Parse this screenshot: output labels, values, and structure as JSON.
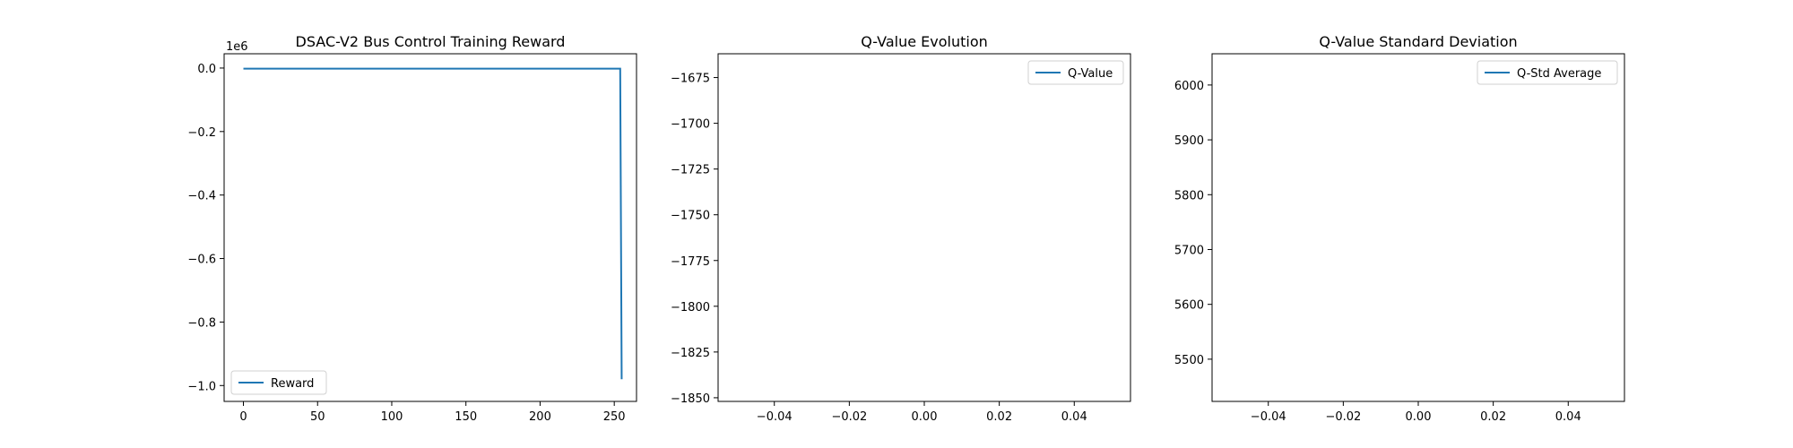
{
  "chart_data": [
    {
      "type": "line",
      "title": "DSAC-V2 Bus Control Training Reward",
      "xlabel": "",
      "ylabel": "",
      "y_offset_label": "1e6",
      "xlim": [
        -13,
        265
      ],
      "ylim": [
        -1.05,
        0.045
      ],
      "x_ticks": [
        0,
        50,
        100,
        150,
        200,
        250
      ],
      "x_tick_labels": [
        "0",
        "50",
        "100",
        "150",
        "200",
        "250"
      ],
      "y_ticks": [
        0.0,
        -0.2,
        -0.4,
        -0.6,
        -0.8,
        -1.0
      ],
      "y_tick_labels": [
        "0.0",
        "−0.2",
        "−0.4",
        "−0.6",
        "−0.8",
        "−1.0"
      ],
      "legend_position": "lower-left",
      "series": [
        {
          "name": "Reward",
          "color": "#1f77b4",
          "x": [
            0,
            50,
            100,
            150,
            200,
            254,
            255
          ],
          "y": [
            -0.002,
            -0.002,
            -0.002,
            -0.002,
            -0.002,
            -0.002,
            -0.98
          ]
        }
      ],
      "grid": false
    },
    {
      "type": "line",
      "title": "Q-Value Evolution",
      "xlabel": "",
      "ylabel": "",
      "xlim": [
        -0.055,
        0.055
      ],
      "ylim": [
        -1852,
        -1662
      ],
      "x_ticks": [
        -0.04,
        -0.02,
        0.0,
        0.02,
        0.04
      ],
      "x_tick_labels": [
        "−0.04",
        "−0.02",
        "0.00",
        "0.02",
        "0.04"
      ],
      "y_ticks": [
        -1675,
        -1700,
        -1725,
        -1750,
        -1775,
        -1800,
        -1825,
        -1850
      ],
      "y_tick_labels": [
        "−1675",
        "−1700",
        "−1725",
        "−1750",
        "−1775",
        "−1800",
        "−1825",
        "−1850"
      ],
      "legend_position": "upper-right",
      "series": [
        {
          "name": "Q-Value",
          "color": "#1f77b4",
          "x": [],
          "y": []
        }
      ],
      "grid": false
    },
    {
      "type": "line",
      "title": "Q-Value Standard Deviation",
      "xlabel": "",
      "ylabel": "",
      "xlim": [
        -0.055,
        0.055
      ],
      "ylim": [
        5423,
        6057
      ],
      "x_ticks": [
        -0.04,
        -0.02,
        0.0,
        0.02,
        0.04
      ],
      "x_tick_labels": [
        "−0.04",
        "−0.02",
        "0.00",
        "0.02",
        "0.04"
      ],
      "y_ticks": [
        6000,
        5900,
        5800,
        5700,
        5600,
        5500
      ],
      "y_tick_labels": [
        "6000",
        "5900",
        "5800",
        "5700",
        "5600",
        "5500"
      ],
      "legend_position": "upper-right",
      "series": [
        {
          "name": "Q-Std Average",
          "color": "#1f77b4",
          "x": [],
          "y": []
        }
      ],
      "grid": false
    }
  ]
}
